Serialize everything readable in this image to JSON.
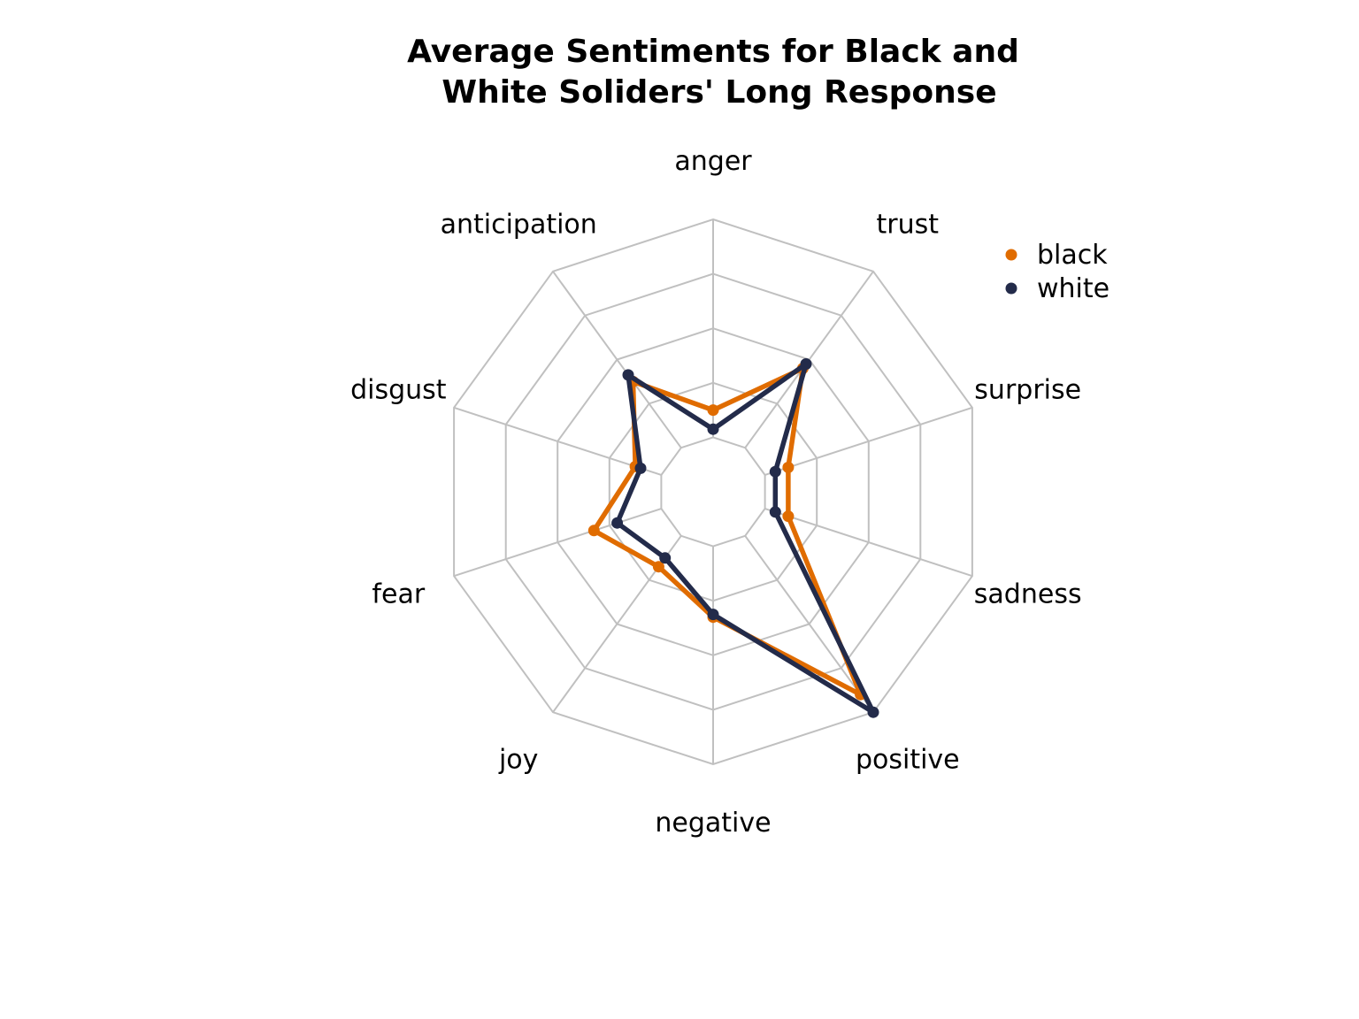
{
  "chart_data": {
    "type": "radar",
    "title_lines": [
      "Average Sentiments for Black and",
      "White Soliders' Long Response"
    ],
    "axes": [
      "anger",
      "trust",
      "surprise",
      "sadness",
      "positive",
      "negative",
      "joy",
      "fear",
      "disgust",
      "anticipation"
    ],
    "rmax": 1.0,
    "grid_levels": [
      0.2,
      0.4,
      0.6,
      0.8,
      1.0
    ],
    "grid": true,
    "legend_position": "top-right",
    "series": [
      {
        "name": "black",
        "color": "#e06c00",
        "values": [
          0.3,
          0.56,
          0.29,
          0.29,
          0.92,
          0.46,
          0.34,
          0.46,
          0.3,
          0.5
        ]
      },
      {
        "name": "white",
        "color": "#232b4a",
        "values": [
          0.23,
          0.58,
          0.24,
          0.24,
          1.0,
          0.45,
          0.3,
          0.37,
          0.28,
          0.53
        ]
      }
    ]
  }
}
